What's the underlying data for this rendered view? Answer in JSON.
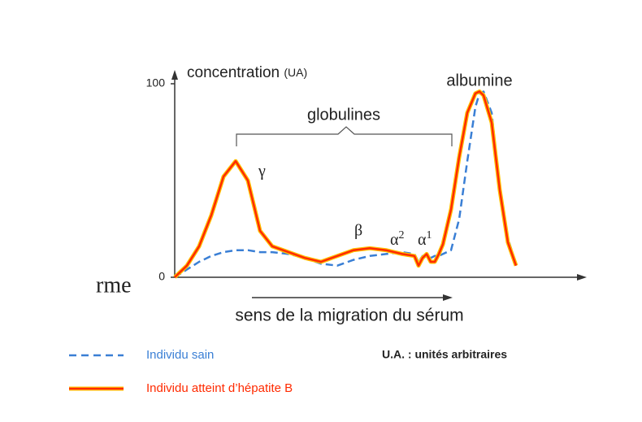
{
  "fragment": "rme",
  "chart_data": {
    "type": "line",
    "ylabel": "concentration",
    "ylabel_unit": "(UA)",
    "xlabel": "sens de la migration du sérum",
    "annotations": {
      "albumine": "albumine",
      "globulines": "globulines",
      "gamma": "γ",
      "beta": "β",
      "alpha2": "α",
      "alpha2_sup": "2",
      "alpha1": "α",
      "alpha1_sup": "1"
    },
    "note": "U.A. : unités arbitraires",
    "xlim": [
      0,
      100
    ],
    "ylim": [
      0,
      100
    ],
    "yticks": [
      0,
      100
    ],
    "x": [
      0,
      3,
      6,
      9,
      12,
      15,
      18,
      21,
      24,
      28,
      32,
      36,
      40,
      44,
      48,
      52,
      56,
      59,
      60,
      61,
      62,
      63,
      64,
      65,
      66,
      68,
      70,
      72,
      74,
      75,
      76,
      78,
      80,
      82,
      84
    ],
    "series": [
      {
        "name": "Individu sain",
        "color": "#3a7fd5",
        "dashed": true,
        "values": [
          0,
          4,
          8,
          11,
          13,
          14,
          14,
          13,
          13,
          12,
          10,
          7,
          6,
          9,
          11,
          12,
          13,
          12,
          8,
          11,
          11,
          10,
          11,
          11,
          12,
          14,
          30,
          60,
          88,
          95,
          96,
          85,
          45,
          20,
          7
        ]
      },
      {
        "name": "Individu atteint d’hépatite B",
        "color": "#ff2a00",
        "dashed": false,
        "values": [
          0,
          6,
          16,
          32,
          52,
          60,
          50,
          24,
          16,
          13,
          10,
          8,
          11,
          14,
          15,
          14,
          12,
          11,
          6,
          10,
          12,
          8,
          8,
          12,
          17,
          35,
          62,
          85,
          95,
          96,
          94,
          80,
          45,
          18,
          6
        ]
      }
    ]
  }
}
